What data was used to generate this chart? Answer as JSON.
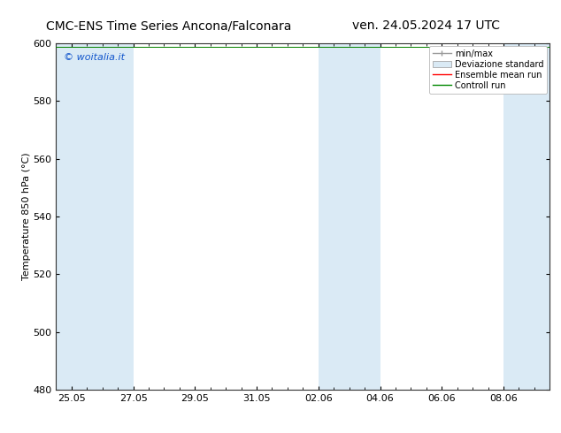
{
  "title_left": "CMC-ENS Time Series Ancona/Falconara",
  "title_right": "ven. 24.05.2024 17 UTC",
  "ylabel": "Temperature 850 hPa (°C)",
  "ylim": [
    480,
    600
  ],
  "yticks": [
    480,
    500,
    520,
    540,
    560,
    580,
    600
  ],
  "xtick_labels": [
    "25.05",
    "27.05",
    "29.05",
    "31.05",
    "02.06",
    "04.06",
    "06.06",
    "08.06"
  ],
  "xtick_positions": [
    0,
    2,
    4,
    6,
    8,
    10,
    12,
    14
  ],
  "xlim": [
    -0.5,
    15.5
  ],
  "shaded_bands": [
    {
      "x_start": -0.5,
      "x_end": 2
    },
    {
      "x_start": 8,
      "x_end": 10
    },
    {
      "x_start": 14,
      "x_end": 15.5
    }
  ],
  "band_color": "#daeaf5",
  "background_color": "#ffffff",
  "plot_bg_color": "#ffffff",
  "watermark_text": "© woitalia.it",
  "watermark_color": "#1155cc",
  "legend_labels": [
    "min/max",
    "Deviazione standard",
    "Ensemble mean run",
    "Controll run"
  ],
  "legend_colors_line": [
    "#999999",
    "#b8d4e8",
    "#ff0000",
    "#008800"
  ],
  "title_fontsize": 10,
  "axis_fontsize": 8,
  "tick_fontsize": 8,
  "watermark_fontsize": 8
}
